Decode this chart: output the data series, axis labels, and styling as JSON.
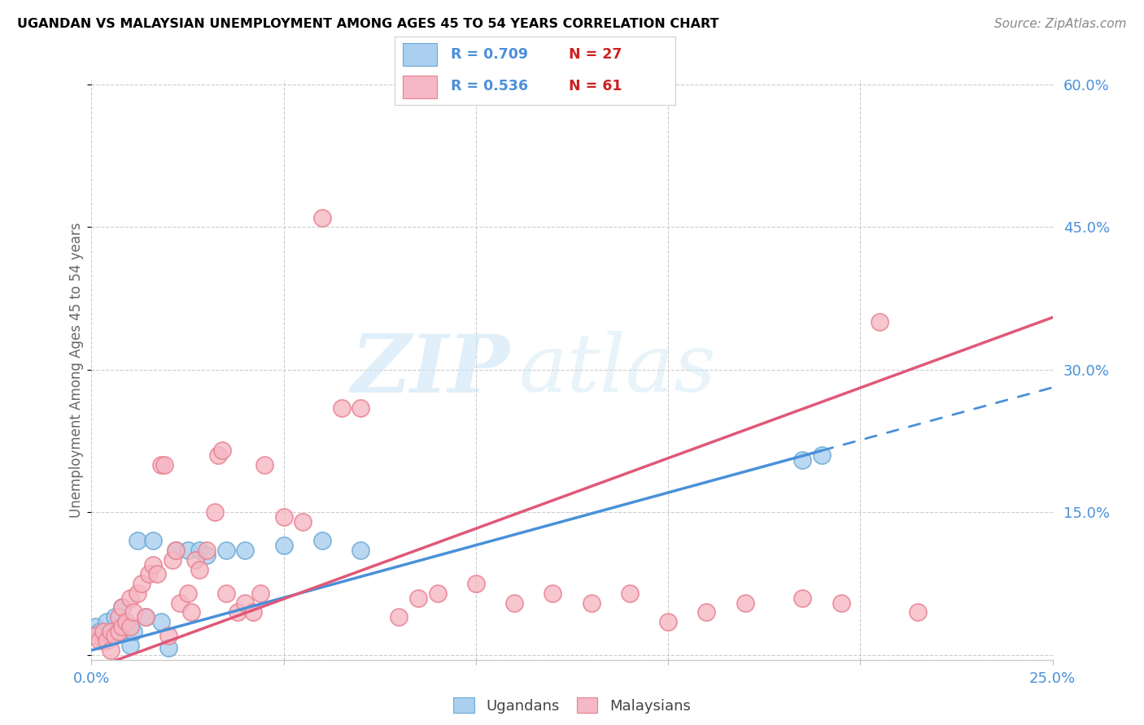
{
  "title": "UGANDAN VS MALAYSIAN UNEMPLOYMENT AMONG AGES 45 TO 54 YEARS CORRELATION CHART",
  "source": "Source: ZipAtlas.com",
  "ylabel": "Unemployment Among Ages 45 to 54 years",
  "xlim": [
    0.0,
    0.25
  ],
  "ylim": [
    -0.005,
    0.605
  ],
  "xticks": [
    0.0,
    0.05,
    0.1,
    0.15,
    0.2,
    0.25
  ],
  "xticklabels": [
    "0.0%",
    "",
    "",
    "",
    "",
    "25.0%"
  ],
  "yticks": [
    0.0,
    0.15,
    0.3,
    0.45,
    0.6
  ],
  "yticklabels_right": [
    "",
    "15.0%",
    "30.0%",
    "45.0%",
    "60.0%"
  ],
  "ugandan_color": "#aacfef",
  "ugandan_edge_color": "#6aaad4",
  "malaysian_color": "#f5b8c4",
  "malaysian_edge_color": "#e8808f",
  "ugandan_line_color": "#4a90d9",
  "malaysian_line_color": "#e05878",
  "ugandan_R": "0.709",
  "ugandan_N": "27",
  "malaysian_R": "0.536",
  "malaysian_N": "61",
  "legend_label_ugandan": "Ugandans",
  "legend_label_malaysian": "Malaysians",
  "ugandan_x": [
    0.001,
    0.002,
    0.003,
    0.004,
    0.005,
    0.006,
    0.007,
    0.008,
    0.009,
    0.01,
    0.011,
    0.012,
    0.014,
    0.016,
    0.018,
    0.02,
    0.022,
    0.025,
    0.028,
    0.03,
    0.035,
    0.04,
    0.05,
    0.06,
    0.07,
    0.185,
    0.19
  ],
  "ugandan_y": [
    0.03,
    0.025,
    0.015,
    0.035,
    0.02,
    0.04,
    0.025,
    0.05,
    0.03,
    0.01,
    0.025,
    0.12,
    0.04,
    0.12,
    0.035,
    0.008,
    0.11,
    0.11,
    0.11,
    0.105,
    0.11,
    0.11,
    0.115,
    0.12,
    0.11,
    0.205,
    0.21
  ],
  "malaysian_x": [
    0.001,
    0.002,
    0.003,
    0.004,
    0.005,
    0.005,
    0.006,
    0.007,
    0.007,
    0.008,
    0.008,
    0.009,
    0.01,
    0.01,
    0.011,
    0.012,
    0.013,
    0.014,
    0.015,
    0.016,
    0.017,
    0.018,
    0.019,
    0.02,
    0.021,
    0.022,
    0.023,
    0.025,
    0.026,
    0.027,
    0.028,
    0.03,
    0.032,
    0.033,
    0.034,
    0.035,
    0.038,
    0.04,
    0.042,
    0.044,
    0.045,
    0.05,
    0.055,
    0.06,
    0.065,
    0.07,
    0.08,
    0.085,
    0.09,
    0.1,
    0.11,
    0.12,
    0.13,
    0.14,
    0.15,
    0.16,
    0.17,
    0.185,
    0.195,
    0.205,
    0.215
  ],
  "malaysian_y": [
    0.02,
    0.015,
    0.025,
    0.015,
    0.005,
    0.025,
    0.02,
    0.025,
    0.04,
    0.03,
    0.05,
    0.035,
    0.06,
    0.03,
    0.045,
    0.065,
    0.075,
    0.04,
    0.085,
    0.095,
    0.085,
    0.2,
    0.2,
    0.02,
    0.1,
    0.11,
    0.055,
    0.065,
    0.045,
    0.1,
    0.09,
    0.11,
    0.15,
    0.21,
    0.215,
    0.065,
    0.045,
    0.055,
    0.045,
    0.065,
    0.2,
    0.145,
    0.14,
    0.46,
    0.26,
    0.26,
    0.04,
    0.06,
    0.065,
    0.075,
    0.055,
    0.065,
    0.055,
    0.065,
    0.035,
    0.045,
    0.055,
    0.06,
    0.055,
    0.35,
    0.045
  ],
  "ugandan_line_x0": 0.0,
  "ugandan_line_x_solid_end": 0.19,
  "ugandan_line_x_dash_end": 0.25,
  "malaysian_line_x0": 0.0,
  "malaysian_line_x_end": 0.25
}
